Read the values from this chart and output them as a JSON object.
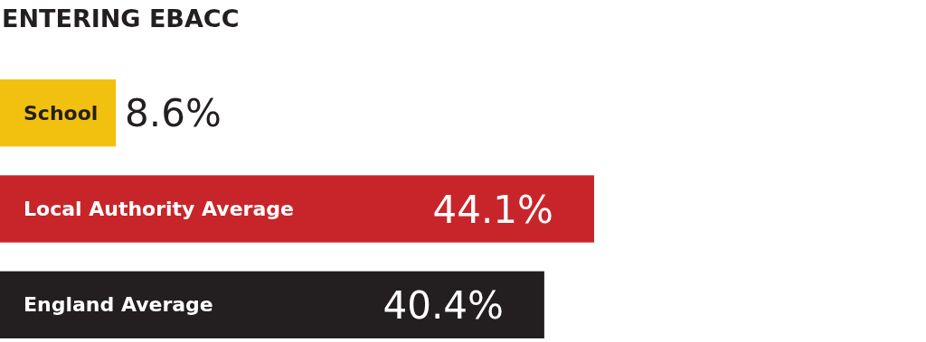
{
  "chart_data": {
    "type": "bar",
    "orientation": "horizontal",
    "title": "ENTERING EBACC",
    "categories": [
      "School",
      "Local Authority Average",
      "England Average"
    ],
    "values": [
      8.6,
      44.1,
      40.4
    ],
    "colors": [
      "#f2c10f",
      "#c8252b",
      "#231f20"
    ],
    "value_labels": [
      "8.6%",
      "44.1%",
      "40.4%"
    ]
  }
}
